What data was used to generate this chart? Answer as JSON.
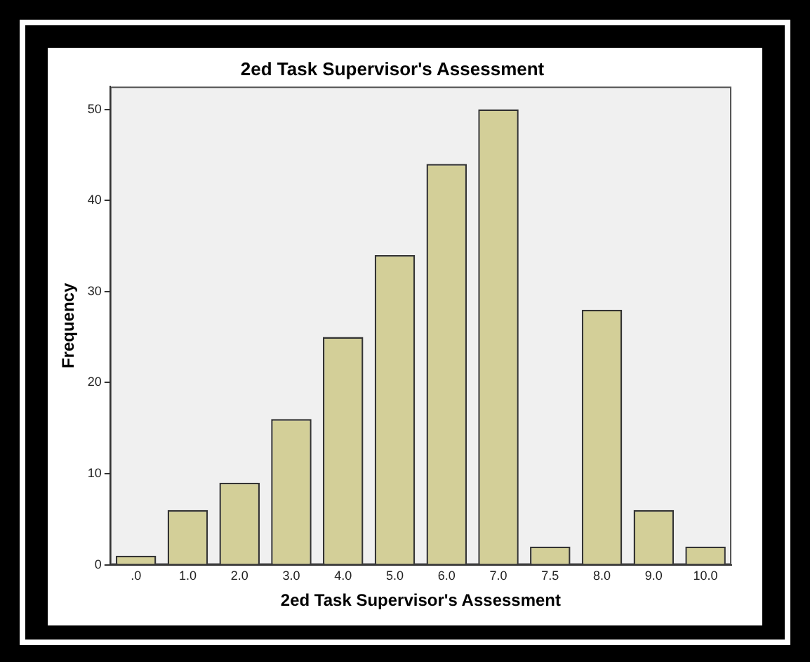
{
  "chart_data": {
    "type": "bar",
    "title": "2ed Task Supervisor's Assessment",
    "xlabel": "2ed Task Supervisor's Assessment",
    "ylabel": "Frequency",
    "categories": [
      ".0",
      "1.0",
      "2.0",
      "3.0",
      "4.0",
      "5.0",
      "6.0",
      "7.0",
      "7.5",
      "8.0",
      "9.0",
      "10.0"
    ],
    "values": [
      1,
      6,
      9,
      16,
      25,
      34,
      44,
      50,
      2,
      28,
      6,
      2
    ],
    "color": "#d3cf98",
    "ylim": [
      0,
      52.5
    ],
    "yticks": [
      0,
      10,
      20,
      30,
      40,
      50
    ],
    "grid": false,
    "legend": false
  }
}
